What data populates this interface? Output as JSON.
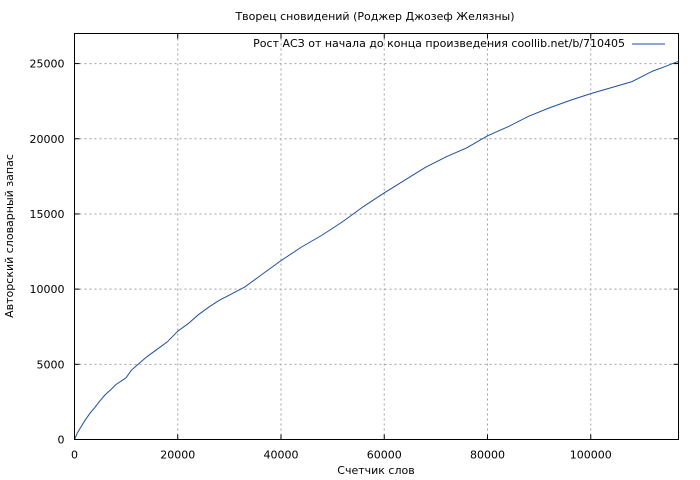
{
  "chart_data": {
    "type": "line",
    "title": "Творец сновидений (Роджер Джозеф Желязны)",
    "xlabel": "Счетчик слов",
    "ylabel": "Авторский словарный запас",
    "xlim": [
      0,
      117000
    ],
    "ylim": [
      0,
      27000
    ],
    "x_ticks": [
      0,
      20000,
      40000,
      60000,
      80000,
      100000
    ],
    "y_ticks": [
      0,
      5000,
      10000,
      15000,
      20000,
      25000
    ],
    "grid": true,
    "legend_position": "top-right",
    "series": [
      {
        "name": "Рост АСЗ от начала до конца произведения coollib.net/b/710405",
        "color": "#1f4fa0",
        "x": [
          0,
          500,
          1000,
          2000,
          3000,
          4000,
          5000,
          6000,
          7000,
          8000,
          10000,
          11000,
          12000,
          14000,
          16000,
          18000,
          20000,
          22000,
          24000,
          26000,
          28000,
          30000,
          33000,
          36000,
          40000,
          44000,
          48000,
          52000,
          56000,
          60000,
          64000,
          68000,
          72000,
          76000,
          80000,
          84000,
          88000,
          92000,
          96000,
          100000,
          104000,
          108000,
          112000,
          114000,
          117000
        ],
        "y": [
          0,
          400,
          700,
          1250,
          1750,
          2150,
          2600,
          3000,
          3300,
          3650,
          4100,
          4600,
          4900,
          5500,
          6000,
          6500,
          7200,
          7700,
          8300,
          8800,
          9250,
          9600,
          10150,
          10900,
          11900,
          12800,
          13600,
          14500,
          15500,
          16400,
          17250,
          18100,
          18800,
          19400,
          20200,
          20800,
          21500,
          22050,
          22550,
          23000,
          23400,
          23800,
          24500,
          24750,
          25150
        ]
      }
    ]
  }
}
